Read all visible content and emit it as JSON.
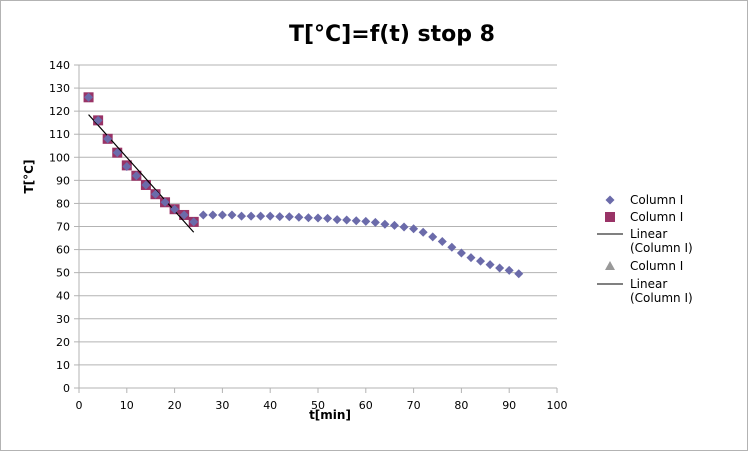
{
  "chart_data": {
    "type": "scatter",
    "title": "T[°C]=f(t) stop 8",
    "xlabel": "t[min]",
    "ylabel": "T[°C]",
    "xlim": [
      0,
      100
    ],
    "ylim": [
      0,
      140
    ],
    "xticks": [
      0,
      10,
      20,
      30,
      40,
      50,
      60,
      70,
      80,
      90,
      100
    ],
    "yticks": [
      0,
      10,
      20,
      30,
      40,
      50,
      60,
      70,
      80,
      90,
      100,
      110,
      120,
      130,
      140
    ],
    "grid": "horizontal",
    "legend_position": "right",
    "series": [
      {
        "name": "Column I",
        "marker": "diamond",
        "color": "#6b6baa",
        "x": [
          2,
          4,
          6,
          8,
          10,
          12,
          14,
          16,
          18,
          20,
          22,
          24,
          26,
          28,
          30,
          32,
          34,
          36,
          38,
          40,
          42,
          44,
          46,
          48,
          50,
          52,
          54,
          56,
          58,
          60,
          62,
          64,
          66,
          68,
          70,
          72,
          74,
          76,
          78,
          80,
          82,
          84,
          86,
          88,
          90,
          92
        ],
        "y": [
          126,
          116,
          108,
          102,
          96,
          92,
          88,
          84,
          80.5,
          77.5,
          75,
          72,
          75,
          75,
          75,
          75,
          74.5,
          74.5,
          74.5,
          74.5,
          74.3,
          74.2,
          74,
          73.8,
          73.7,
          73.5,
          73,
          72.8,
          72.5,
          72.2,
          71.8,
          71,
          70.5,
          69.8,
          69,
          67.5,
          65.5,
          63.5,
          61,
          58.5,
          56.5,
          55,
          53.5,
          52,
          51,
          49.5
        ]
      },
      {
        "name": "Column I",
        "marker": "square",
        "color": "#993366",
        "x": [
          2,
          4,
          6,
          8,
          10,
          12,
          14,
          16,
          18,
          20,
          22,
          24
        ],
        "y": [
          126,
          116,
          108,
          102,
          96.5,
          92,
          88,
          84,
          80.5,
          77.5,
          75,
          72
        ]
      },
      {
        "name": "Linear\n(Column I)",
        "type": "trendline",
        "color": "#000000",
        "x": [
          2,
          24
        ],
        "y": [
          118.5,
          67.5
        ]
      },
      {
        "name": "Column I",
        "marker": "triangle",
        "color": "#999999",
        "x": [],
        "y": []
      },
      {
        "name": "Linear\n(Column I)",
        "type": "trendline",
        "color": "#000000",
        "x": [],
        "y": []
      }
    ]
  }
}
